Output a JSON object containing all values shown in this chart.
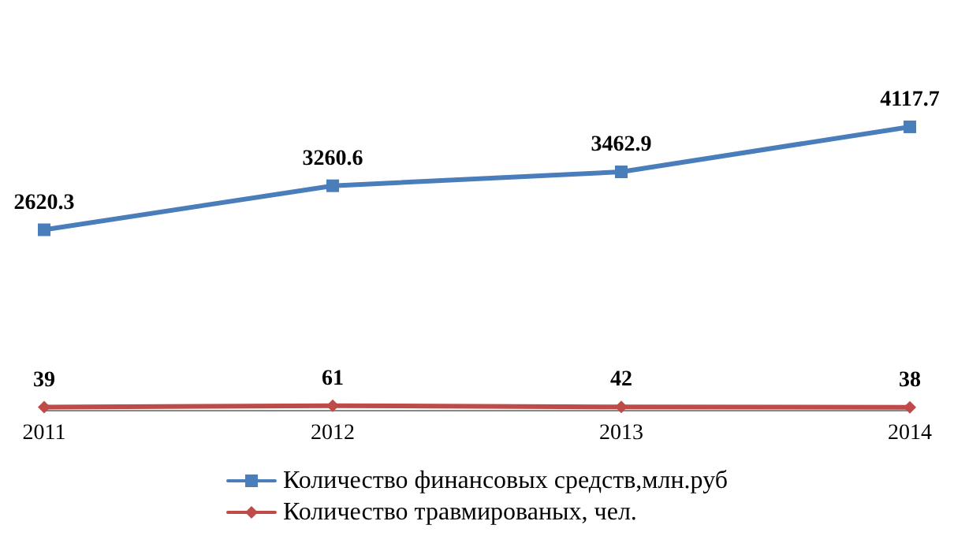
{
  "chart_data": {
    "type": "line",
    "categories": [
      "2011",
      "2012",
      "2013",
      "2014"
    ],
    "series": [
      {
        "name": "Количество финансовых средств,млн.руб",
        "color": "#4a7ebb",
        "marker": "square",
        "values": [
          2620.3,
          3260.6,
          3462.9,
          4117.7
        ]
      },
      {
        "name": "Количество травмированых, чел.",
        "color": "#be4b48",
        "marker": "diamond",
        "values": [
          39,
          61,
          42,
          38
        ]
      }
    ],
    "data_labels": true,
    "legend": "bottom",
    "line_style": "solid"
  }
}
